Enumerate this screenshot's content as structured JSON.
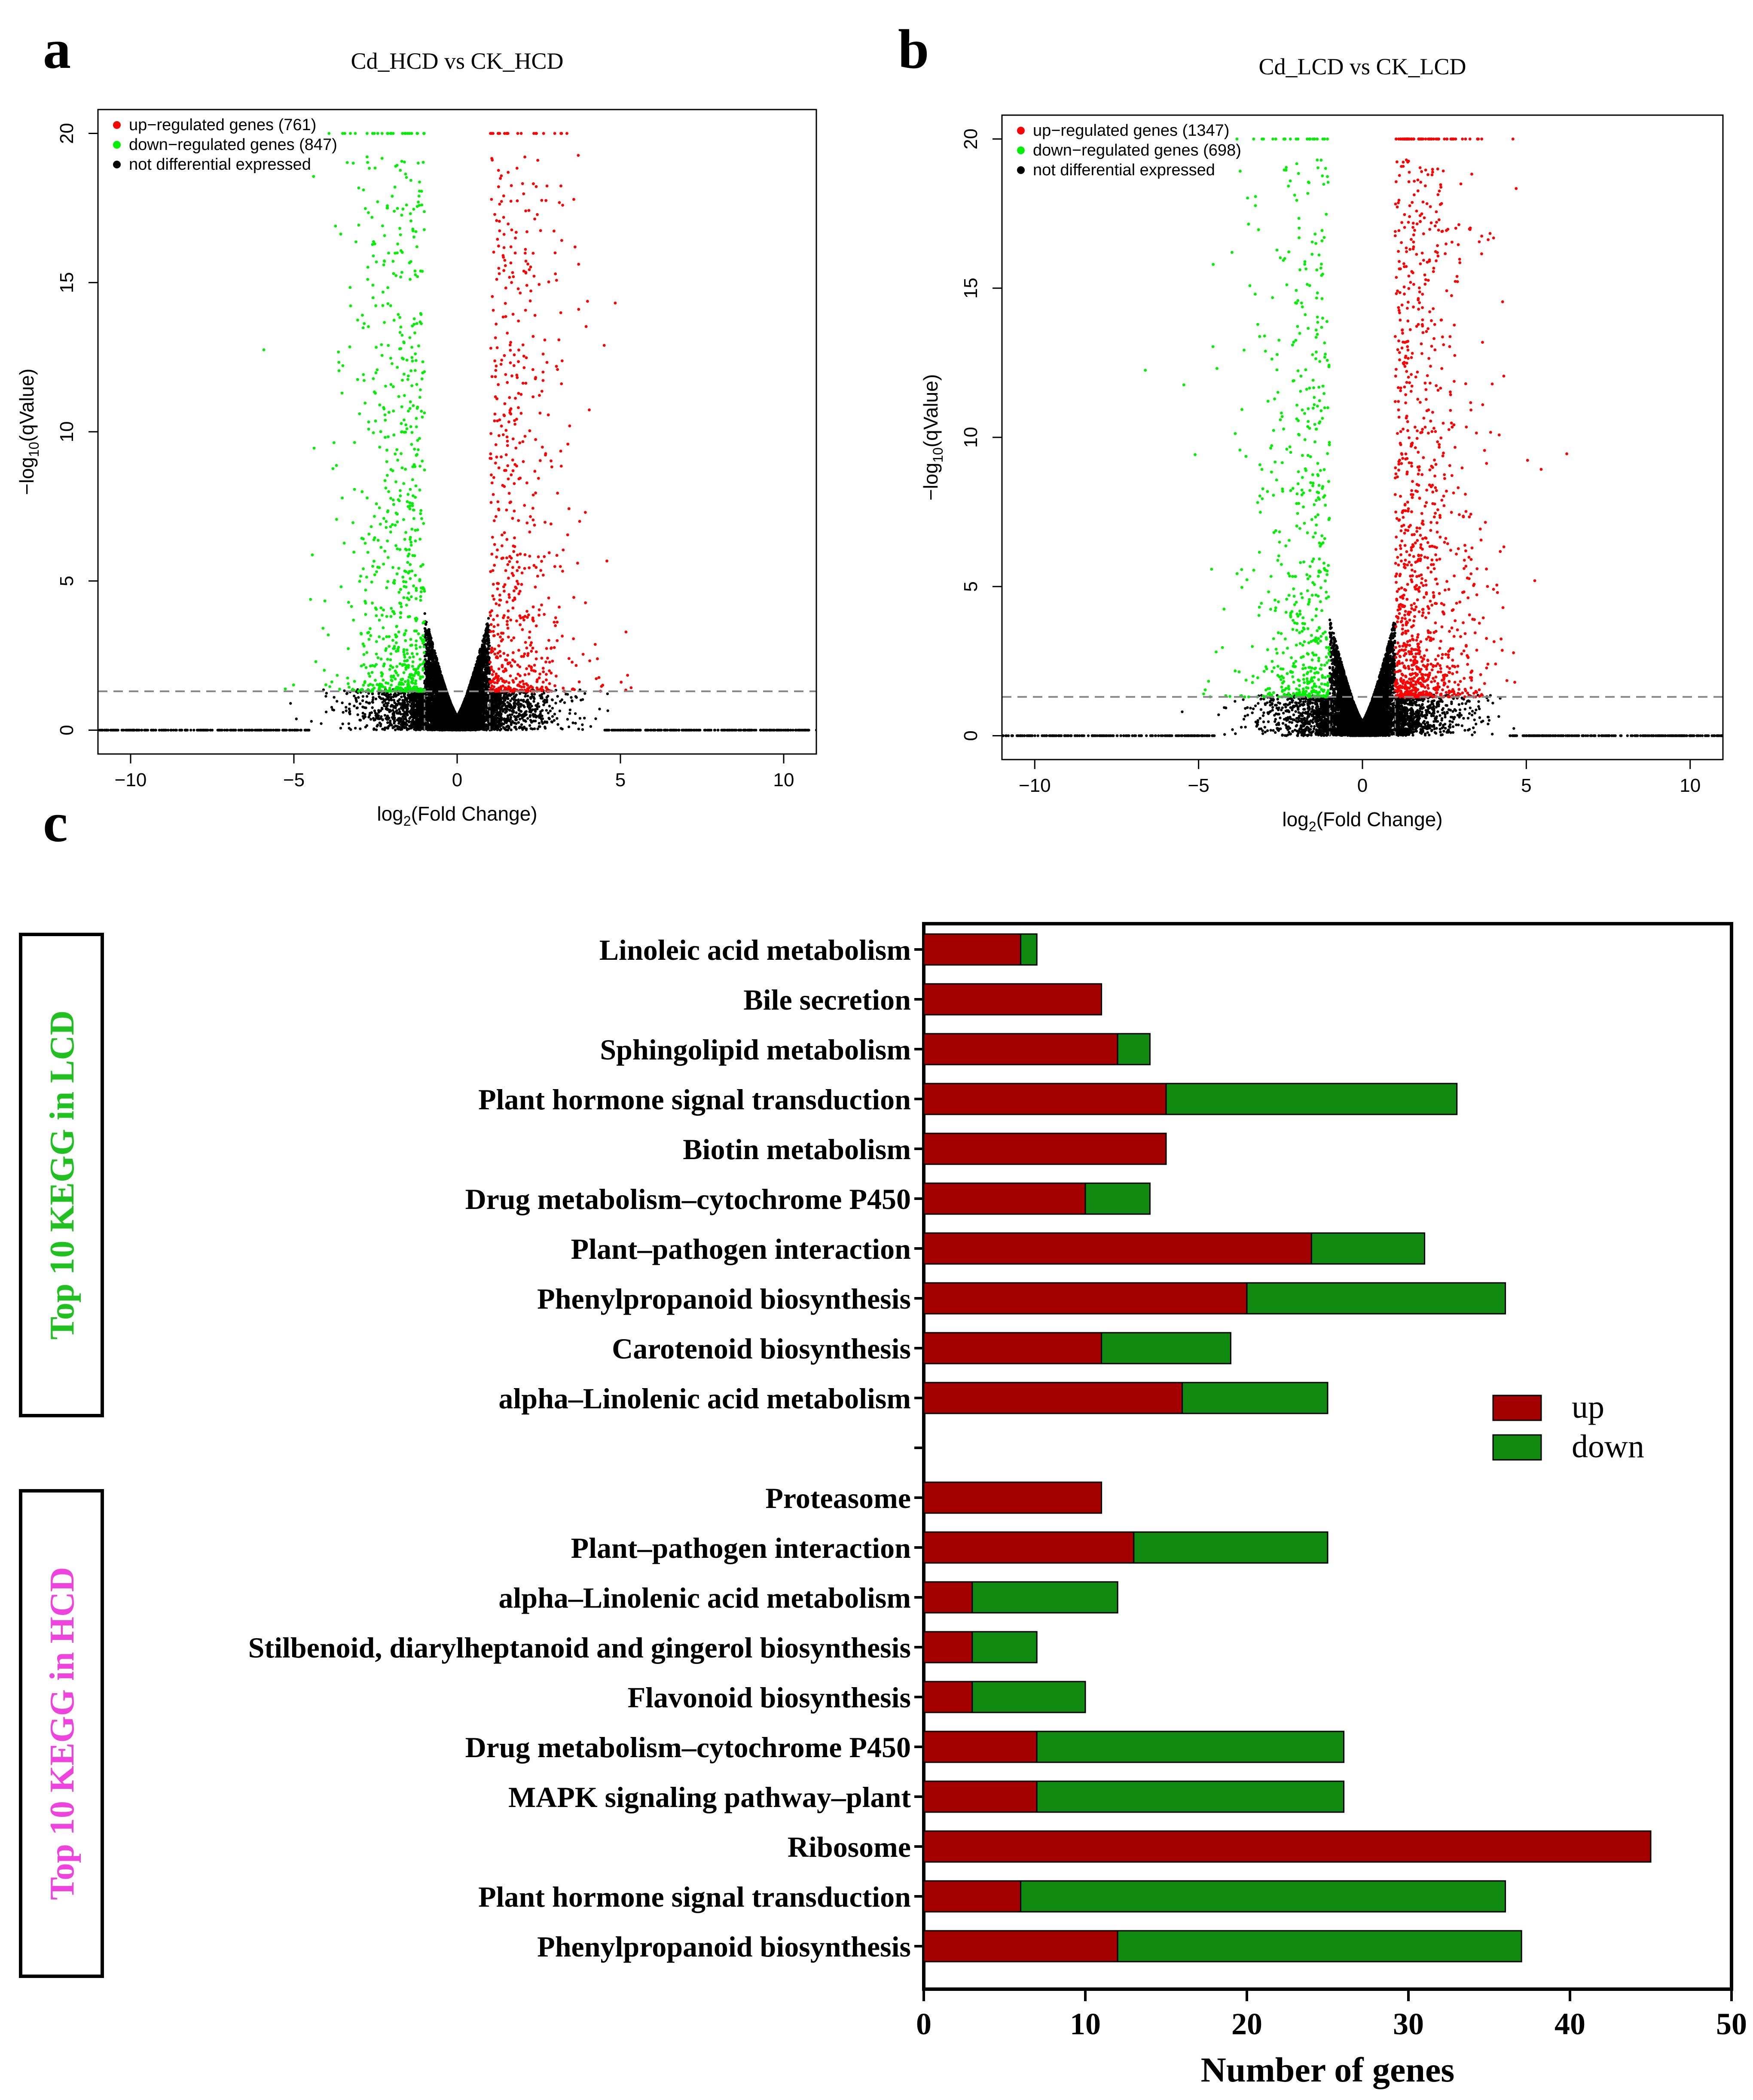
{
  "panel_a": {
    "letter": "a",
    "chart_data": {
      "type": "scatter",
      "title": "Cd_HCD vs CK_HCD",
      "xlabel_main": "log",
      "xlabel_sub": "2",
      "xlabel_rest": "(Fold Change)",
      "ylabel_main": "−log",
      "ylabel_sub": "10",
      "ylabel_rest": "(qValue)",
      "xlim": [
        -11,
        11
      ],
      "ylim": [
        -0.8,
        20.8
      ],
      "xticks": [
        -10,
        -5,
        0,
        5,
        10
      ],
      "xtick_labels": [
        "−10",
        "−5",
        "0",
        "5",
        "10"
      ],
      "yticks": [
        0,
        5,
        10,
        15,
        20
      ],
      "ytick_labels": [
        "0",
        "5",
        "10",
        "15",
        "20"
      ],
      "threshold_y": 1.3,
      "threshold_x": [
        -1,
        1
      ],
      "legend": [
        {
          "label": "up−regulated genes (761)",
          "color": "#ff0000"
        },
        {
          "label": "down−regulated genes (847)",
          "color": "#00ee00"
        },
        {
          "label": "not differential expressed",
          "color": "#000000"
        }
      ],
      "series": [
        {
          "name": "up-regulated",
          "count": 761,
          "color": "#ff0000"
        },
        {
          "name": "down-regulated",
          "count": 847,
          "color": "#00ee00"
        },
        {
          "name": "not differential expressed",
          "color": "#000000"
        }
      ]
    }
  },
  "panel_b": {
    "letter": "b",
    "chart_data": {
      "type": "scatter",
      "title": "Cd_LCD vs CK_LCD",
      "xlabel_main": "log",
      "xlabel_sub": "2",
      "xlabel_rest": "(Fold Change)",
      "ylabel_main": "−log",
      "ylabel_sub": "10",
      "ylabel_rest": "(qValue)",
      "xlim": [
        -11,
        11
      ],
      "ylim": [
        -0.8,
        20.8
      ],
      "xticks": [
        -10,
        -5,
        0,
        5,
        10
      ],
      "xtick_labels": [
        "−10",
        "−5",
        "0",
        "5",
        "10"
      ],
      "yticks": [
        0,
        5,
        10,
        15,
        20
      ],
      "ytick_labels": [
        "0",
        "5",
        "10",
        "15",
        "20"
      ],
      "threshold_y": 1.3,
      "threshold_x": [
        -1,
        1
      ],
      "legend": [
        {
          "label": "up−regulated genes (1347)",
          "color": "#ff0000"
        },
        {
          "label": "down−regulated genes (698)",
          "color": "#00ee00"
        },
        {
          "label": "not differential expressed",
          "color": "#000000"
        }
      ],
      "series": [
        {
          "name": "up-regulated",
          "count": 1347,
          "color": "#ff0000"
        },
        {
          "name": "down-regulated",
          "count": 698,
          "color": "#00ee00"
        },
        {
          "name": "not differential expressed",
          "color": "#000000"
        }
      ]
    }
  },
  "panel_c": {
    "letter": "c",
    "chart_data": {
      "type": "bar",
      "orientation": "horizontal",
      "stacked": true,
      "xlabel": "Number of genes",
      "xlim": [
        0,
        50
      ],
      "xticks": [
        0,
        10,
        20,
        30,
        40,
        50
      ],
      "xtick_labels": [
        "0",
        "10",
        "20",
        "30",
        "40",
        "50"
      ],
      "legend": [
        {
          "label": "up",
          "color": "#a50000"
        },
        {
          "label": "down",
          "color": "#118a11"
        }
      ],
      "groups": [
        {
          "label": "Top 10 KEGG in LCD",
          "color": "#1fc01f",
          "categories": [
            "Linoleic acid metabolism",
            "Bile secretion",
            "Sphingolipid metabolism",
            "Plant hormone signal transduction",
            "Biotin metabolism",
            "Drug metabolism–cytochrome P450",
            "Plant–pathogen interaction",
            "Phenylpropanoid biosynthesis",
            "Carotenoid biosynthesis",
            "alpha–Linolenic acid metabolism"
          ],
          "up": [
            6,
            11,
            12,
            15,
            15,
            10,
            24,
            20,
            11,
            16
          ],
          "down": [
            1,
            0,
            2,
            18,
            0,
            4,
            7,
            16,
            8,
            9
          ]
        },
        {
          "label": "Top 10 KEGG in HCD",
          "color": "#ee44dd",
          "categories": [
            "Proteasome",
            "Plant–pathogen interaction",
            "alpha–Linolenic acid metabolism",
            "Stilbenoid, diarylheptanoid and gingerol biosynthesis",
            "Flavonoid biosynthesis",
            "Drug metabolism–cytochrome P450",
            "MAPK signaling pathway–plant",
            "Ribosome",
            "Plant hormone signal transduction",
            "Phenylpropanoid biosynthesis"
          ],
          "up": [
            11,
            13,
            3,
            3,
            3,
            7,
            7,
            45,
            6,
            12
          ],
          "down": [
            0,
            12,
            9,
            4,
            7,
            19,
            19,
            0,
            30,
            25
          ]
        }
      ]
    }
  }
}
